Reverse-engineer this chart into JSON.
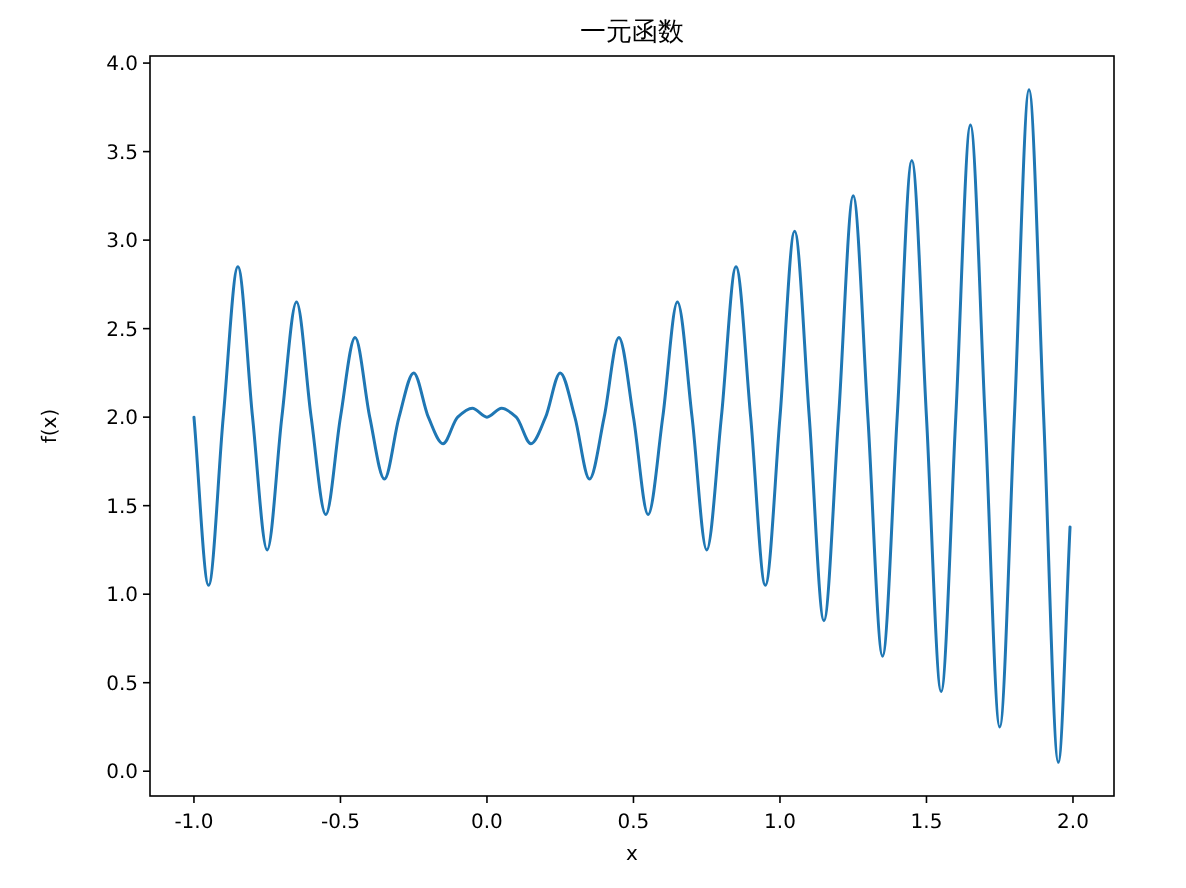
{
  "chart_data": {
    "type": "line",
    "title": "一元函数",
    "xlabel": "x",
    "ylabel": "f(x)",
    "x": [
      -1,
      -0.95,
      -0.9,
      -0.85,
      -0.8,
      -0.75,
      -0.7,
      -0.65,
      -0.6,
      -0.55,
      -0.5,
      -0.45,
      -0.4,
      -0.35,
      -0.3,
      -0.25,
      -0.2,
      -0.15,
      -0.1,
      -0.05,
      0,
      0.05,
      0.1,
      0.15,
      0.2,
      0.25,
      0.3,
      0.35,
      0.4,
      0.45,
      0.5,
      0.55,
      0.6,
      0.65,
      0.7,
      0.75,
      0.8,
      0.85,
      0.9,
      0.95,
      1,
      1.05,
      1.1,
      1.15,
      1.2,
      1.25,
      1.3,
      1.35,
      1.4,
      1.45,
      1.5,
      1.55,
      1.6,
      1.65,
      1.7,
      1.75,
      1.8,
      1.85,
      1.9,
      1.95,
      1.99
    ],
    "series": [
      {
        "color": "#1f77b4",
        "values": [
          2,
          1.05,
          2,
          2.85,
          2,
          1.25,
          2,
          2.65,
          2,
          1.45,
          2,
          2.45,
          2,
          1.65,
          2,
          2.25,
          2,
          1.85,
          2,
          2.05,
          2,
          2.05,
          2,
          1.85,
          2,
          2.25,
          2,
          1.65,
          2,
          2.45,
          2,
          1.45,
          2,
          2.65,
          2,
          1.25,
          2,
          2.85,
          2,
          1.05,
          2,
          3.05,
          2,
          0.85,
          2,
          3.25,
          2,
          0.65,
          2,
          3.45,
          2,
          0.45,
          2,
          3.65,
          2,
          0.25,
          2,
          3.85,
          2,
          0.05,
          1.38
        ]
      }
    ],
    "xlim": [
      -1.15,
      2.14
    ],
    "ylim": [
      -0.14,
      4.04
    ],
    "xticks": [
      {
        "value": -1,
        "label": "-1.0"
      },
      {
        "value": -0.5,
        "label": "-0.5"
      },
      {
        "value": 0,
        "label": "0.0"
      },
      {
        "value": 0.5,
        "label": "0.5"
      },
      {
        "value": 1,
        "label": "1.0"
      },
      {
        "value": 1.5,
        "label": "1.5"
      },
      {
        "value": 2,
        "label": "2.0"
      }
    ],
    "yticks": [
      {
        "value": 0,
        "label": "0.0"
      },
      {
        "value": 0.5,
        "label": "0.5"
      },
      {
        "value": 1,
        "label": "1.0"
      },
      {
        "value": 1.5,
        "label": "1.5"
      },
      {
        "value": 2,
        "label": "2.0"
      },
      {
        "value": 2.5,
        "label": "2.5"
      },
      {
        "value": 3,
        "label": "3.0"
      },
      {
        "value": 3.5,
        "label": "3.5"
      },
      {
        "value": 4,
        "label": "4.0"
      }
    ],
    "grid": false,
    "marker": "none",
    "line_style": "solid"
  }
}
